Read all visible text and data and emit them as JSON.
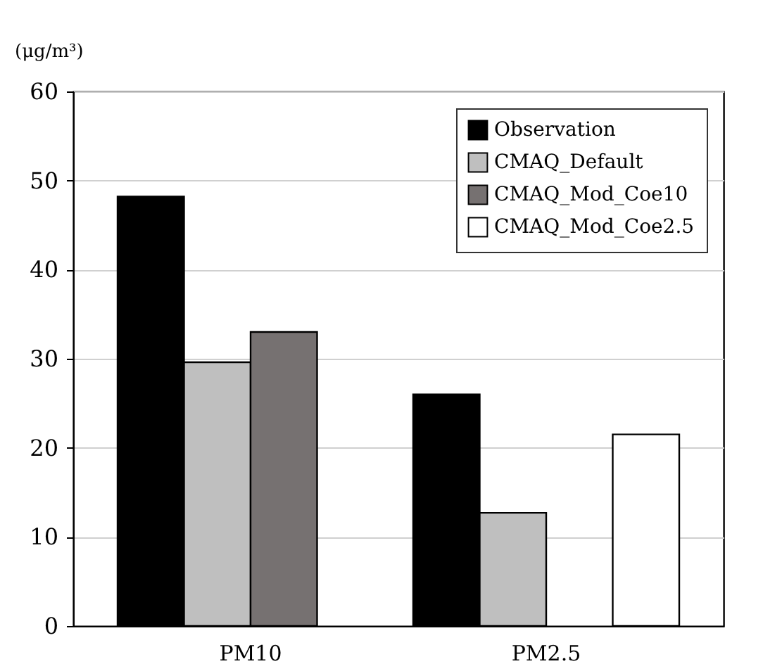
{
  "chart_data": {
    "type": "bar",
    "ylabel": "(μg/m³)",
    "categories": [
      "PM10",
      "PM2.5"
    ],
    "series": [
      {
        "name": "Observation",
        "color": "#000000",
        "values": [
          48.2,
          26.0
        ]
      },
      {
        "name": "CMAQ_Default",
        "color": "#bfbfbf",
        "values": [
          29.6,
          12.7
        ]
      },
      {
        "name": "CMAQ_Mod_Coe10",
        "color": "#767171",
        "values": [
          33.0,
          null
        ]
      },
      {
        "name": "CMAQ_Mod_Coe2.5",
        "color": "#ffffff",
        "values": [
          null,
          21.5
        ]
      }
    ],
    "ylim": [
      0,
      60
    ],
    "yticks": [
      0,
      10,
      20,
      30,
      40,
      50,
      60
    ],
    "grid": "y",
    "legend": "top right"
  }
}
